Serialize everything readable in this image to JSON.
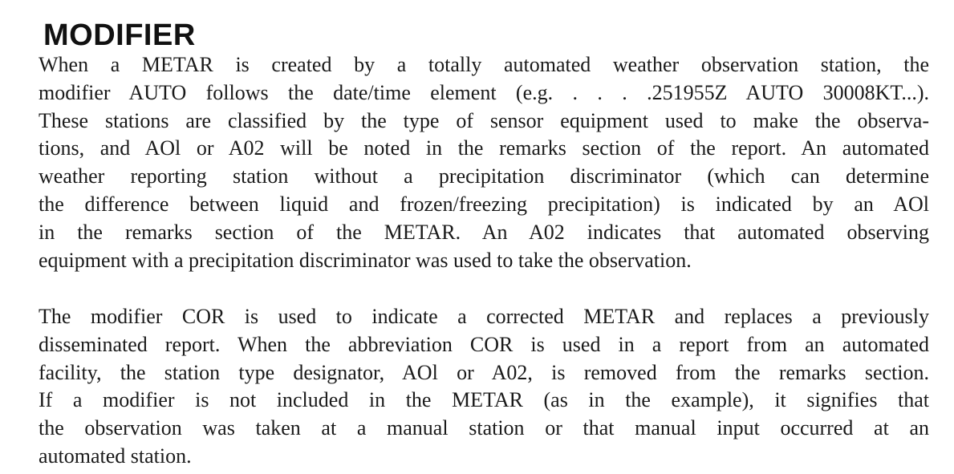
{
  "heading": "MODIFIER",
  "paragraphs": [
    {
      "lines": [
        "When a METAR is created by a totally automated weather observation station, the",
        "modifier AUTO follows the date/time element (e.g. . . . .251955Z AUTO 30008KT...).",
        "These stations are classified by the type of sensor equipment used to make the observa-",
        "tions, and AOl or A02 will be noted in the remarks section of the report. An automated",
        "weather reporting station without a precipitation discriminator (which can determine",
        "the difference between liquid and frozen/freezing precipitation) is indicated by an AOl",
        "in the remarks section of the METAR. An A02 indicates that automated observing",
        "equipment with a precipitation discriminator was used to take the observation."
      ]
    },
    {
      "lines": [
        "The modifier COR is used to indicate a corrected METAR and replaces a previously",
        "disseminated report. When the abbreviation COR is used in a report from an automated",
        "facility, the station type designator, AOl or A02, is removed from the remarks section.",
        "If a modifier is not included in the METAR (as in the example), it signifies that",
        "the observation was taken at a manual station or that manual input occurred at an",
        "automated station."
      ]
    }
  ]
}
